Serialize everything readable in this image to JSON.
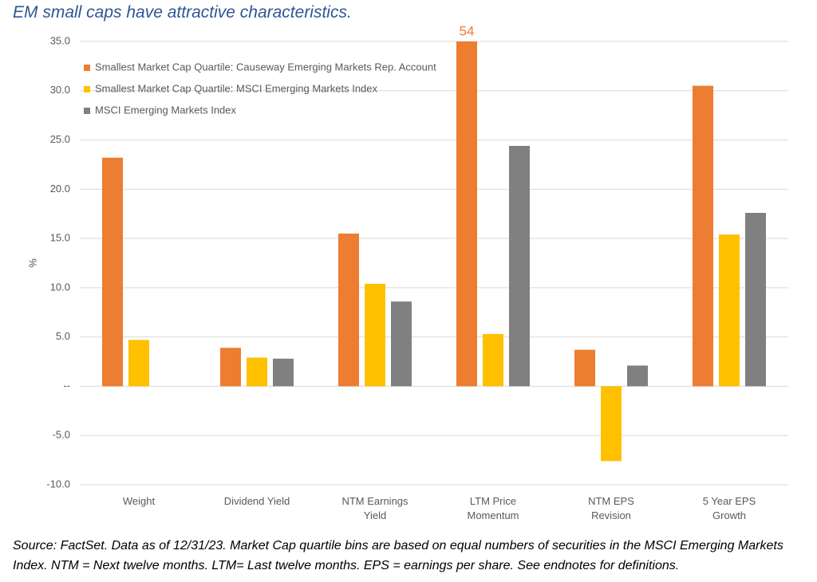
{
  "chart_data": {
    "type": "bar",
    "title": "EM small caps have attractive characteristics.",
    "y_label": "%",
    "source": "Source: FactSet. Data as of 12/31/23. Market Cap quartile bins are based on equal numbers of securities in the MSCI Emerging Markets Index. NTM = Next twelve months. LTM= Last twelve months. EPS = earnings per share. See endnotes for definitions.",
    "categories": [
      "Weight",
      "Dividend Yield",
      "NTM Earnings Yield",
      "LTM Price Momentum",
      "NTM EPS Revision",
      "5 Year EPS Growth"
    ],
    "series": [
      {
        "name": "Smallest Market Cap Quartile: Causeway Emerging Markets Rep. Account",
        "color": "#ed7d31",
        "values": [
          23.2,
          3.9,
          15.5,
          54,
          3.7,
          30.5
        ],
        "value_labels": [
          null,
          null,
          null,
          "54",
          null,
          null
        ]
      },
      {
        "name": "Smallest Market Cap Quartile: MSCI Emerging Markets Index",
        "color": "#ffc000",
        "values": [
          4.7,
          2.9,
          10.4,
          5.3,
          -7.6,
          15.4
        ]
      },
      {
        "name": "MSCI Emerging Markets Index",
        "color": "#808080",
        "values": [
          null,
          2.8,
          8.6,
          24.4,
          2.1,
          17.6
        ]
      }
    ],
    "ylim": [
      -10,
      35
    ],
    "yticks": [
      {
        "value": -10,
        "label": "-10.0"
      },
      {
        "value": -5,
        "label": "-5.0"
      },
      {
        "value": 0,
        "label": "--"
      },
      {
        "value": 5,
        "label": "5.0"
      },
      {
        "value": 10,
        "label": "10.0"
      },
      {
        "value": 15,
        "label": "15.0"
      },
      {
        "value": 20,
        "label": "20.0"
      },
      {
        "value": 25,
        "label": "25.0"
      },
      {
        "value": 30,
        "label": "30.0"
      },
      {
        "value": 35,
        "label": "35.0"
      }
    ],
    "grid": true,
    "legend": "top-left"
  }
}
